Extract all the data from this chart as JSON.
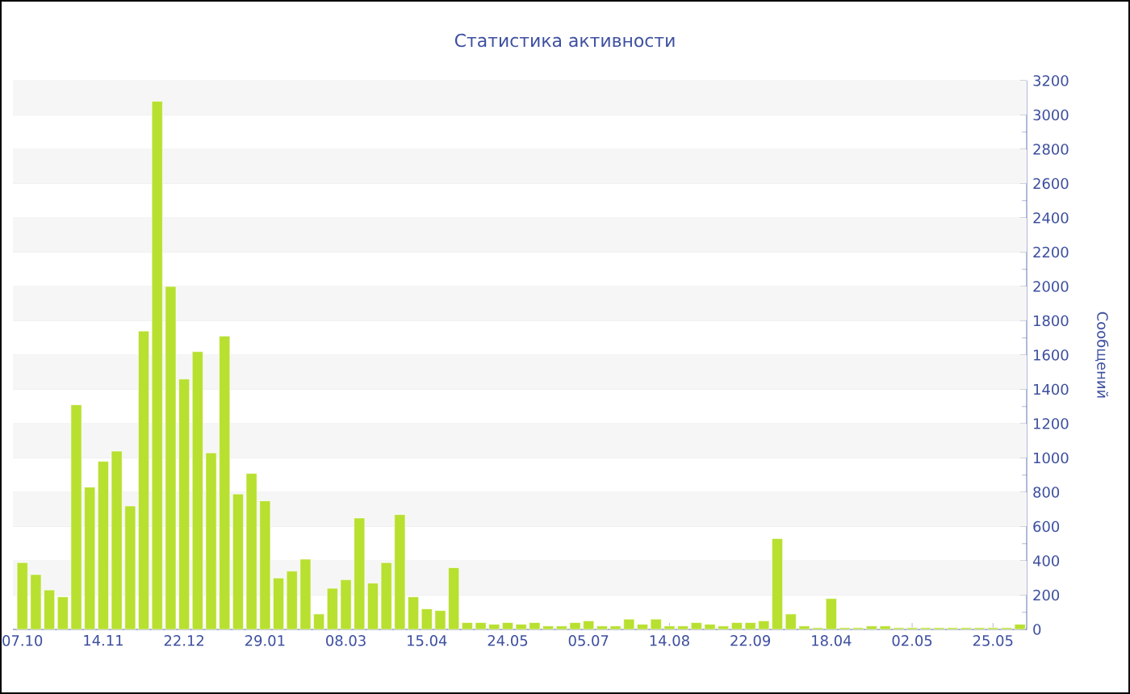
{
  "chart_data": {
    "type": "bar",
    "title": "Статистика активности",
    "ylabel": "Сообщений",
    "categories": [
      "07.10",
      null,
      null,
      null,
      null,
      null,
      "14.11",
      null,
      null,
      null,
      null,
      null,
      "22.12",
      null,
      null,
      null,
      null,
      null,
      "29.01",
      null,
      null,
      null,
      null,
      null,
      "08.03",
      null,
      null,
      null,
      null,
      null,
      "15.04",
      null,
      null,
      null,
      null,
      null,
      "24.05",
      null,
      null,
      null,
      null,
      null,
      "05.07",
      null,
      null,
      null,
      null,
      null,
      "14.08",
      null,
      null,
      null,
      null,
      null,
      "22.09",
      null,
      null,
      null,
      null,
      null,
      "18.04",
      null,
      null,
      null,
      null,
      null,
      "02.05",
      null,
      null,
      null,
      null,
      null,
      "25.05",
      null,
      null
    ],
    "values": [
      390,
      320,
      230,
      190,
      1310,
      830,
      980,
      1040,
      720,
      1740,
      3080,
      2000,
      1460,
      1620,
      1030,
      1710,
      790,
      910,
      750,
      300,
      340,
      410,
      90,
      240,
      290,
      650,
      270,
      390,
      670,
      190,
      120,
      110,
      360,
      40,
      40,
      30,
      40,
      30,
      40,
      20,
      20,
      40,
      50,
      20,
      20,
      60,
      30,
      60,
      20,
      20,
      40,
      30,
      20,
      40,
      40,
      50,
      530,
      90,
      20,
      10,
      180,
      10,
      10,
      20,
      20,
      10,
      10,
      10,
      10,
      10,
      10,
      10,
      10,
      10,
      30
    ],
    "color": "#b8e030",
    "ylim": [
      0,
      3200
    ],
    "yticks": [
      0,
      200,
      400,
      600,
      800,
      1000,
      1200,
      1400,
      1600,
      1800,
      2000,
      2200,
      2400,
      2600,
      2800,
      3000,
      3200
    ],
    "grid": true
  }
}
